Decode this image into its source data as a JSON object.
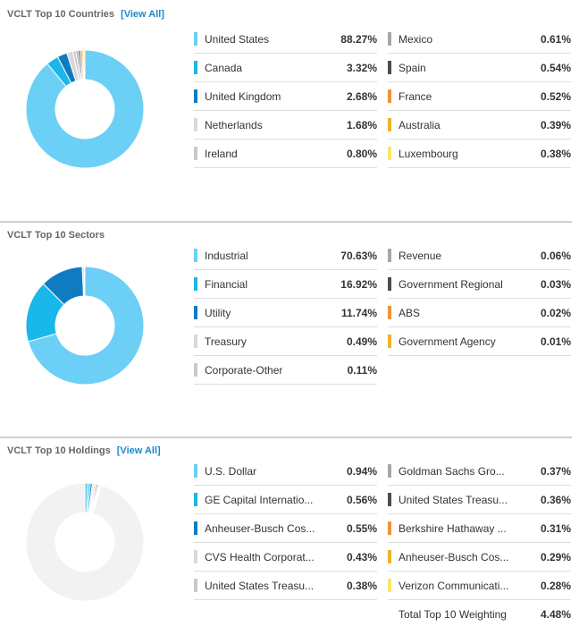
{
  "sections": [
    {
      "id": "countries",
      "title": "VCLT Top 10 Countries",
      "view_all": "[View All]",
      "chart_data": {
        "type": "pie",
        "categories": [
          "United States",
          "Canada",
          "United Kingdom",
          "Netherlands",
          "Ireland",
          "Mexico",
          "Spain",
          "France",
          "Australia",
          "Luxembourg"
        ],
        "values": [
          88.27,
          3.32,
          2.68,
          1.68,
          0.8,
          0.61,
          0.54,
          0.52,
          0.39,
          0.38
        ],
        "display": [
          "88.27%",
          "3.32%",
          "2.68%",
          "1.68%",
          "0.80%",
          "0.61%",
          "0.54%",
          "0.52%",
          "0.39%",
          "0.38%"
        ],
        "colors": [
          "#6ccff6",
          "#1ab7ea",
          "#0f7cc2",
          "#d9d9d9",
          "#c9c9c9",
          "#a6a6a6",
          "#4d4d4d",
          "#f0923b",
          "#f0b428",
          "#fde46b"
        ],
        "remainder_color": "#f2f2f2",
        "remainder_visible": false
      }
    },
    {
      "id": "sectors",
      "title": "VCLT Top 10 Sectors",
      "view_all": "",
      "chart_data": {
        "type": "pie",
        "categories": [
          "Industrial",
          "Financial",
          "Utility",
          "Treasury",
          "Corporate-Other",
          "Revenue",
          "Government Regional",
          "ABS",
          "Government Agency"
        ],
        "values": [
          70.63,
          16.92,
          11.74,
          0.49,
          0.11,
          0.06,
          0.03,
          0.02,
          0.01
        ],
        "display": [
          "70.63%",
          "16.92%",
          "11.74%",
          "0.49%",
          "0.11%",
          "0.06%",
          "0.03%",
          "0.02%",
          "0.01%"
        ],
        "colors": [
          "#6ccff6",
          "#1ab7ea",
          "#0f7cc2",
          "#d9d9d9",
          "#c9c9c9",
          "#a6a6a6",
          "#4d4d4d",
          "#f0923b",
          "#f0b428"
        ],
        "remainder_color": "#f2f2f2",
        "remainder_visible": false
      }
    },
    {
      "id": "holdings",
      "title": "VCLT Top 10 Holdings",
      "view_all": "[View All]",
      "chart_data": {
        "type": "pie",
        "categories": [
          "U.S. Dollar",
          "GE Capital Internatio...",
          "Anheuser-Busch Cos...",
          "CVS Health Corporat...",
          "United States Treasu...",
          "Goldman Sachs Gro...",
          "United States Treasu...",
          "Berkshire Hathaway ...",
          "Anheuser-Busch Cos...",
          "Verizon Communicati..."
        ],
        "values": [
          0.94,
          0.56,
          0.55,
          0.43,
          0.38,
          0.37,
          0.36,
          0.31,
          0.29,
          0.28
        ],
        "display": [
          "0.94%",
          "0.56%",
          "0.55%",
          "0.43%",
          "0.38%",
          "0.37%",
          "0.36%",
          "0.31%",
          "0.29%",
          "0.28%"
        ],
        "colors": [
          "#6ccff6",
          "#1ab7ea",
          "#0f7cc2",
          "#d9d9d9",
          "#c9c9c9",
          "#a6a6a6",
          "#4d4d4d",
          "#f0923b",
          "#f0b428",
          "#fde46b"
        ],
        "remainder_color": "#f2f2f2",
        "remainder_visible": true,
        "total_label": "Total Top 10 Weighting",
        "total_value": "4.48%"
      }
    }
  ]
}
